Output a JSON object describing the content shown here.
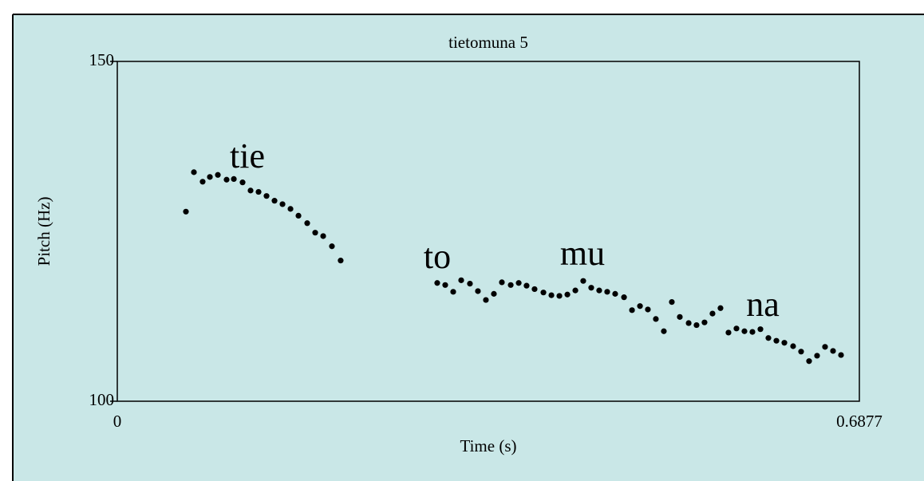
{
  "chart_data": {
    "type": "scatter",
    "title": "tietomuna 5",
    "xlabel": "Time (s)",
    "ylabel": "Pitch (Hz)",
    "color": "#000000",
    "xlim": [
      0,
      0.6877
    ],
    "ylim": [
      100,
      150
    ],
    "xticks": [
      0,
      0.6877
    ],
    "yticks": [
      100,
      150
    ],
    "grid": false,
    "annotations": [
      "tie",
      "to",
      "mu",
      "na"
    ],
    "x": [
      0.0636,
      0.071,
      0.0791,
      0.0858,
      0.0932,
      0.1013,
      0.108,
      0.1161,
      0.1235,
      0.1309,
      0.1383,
      0.1457,
      0.1531,
      0.1605,
      0.1679,
      0.176,
      0.1834,
      0.1908,
      0.1989,
      0.207,
      0.2965,
      0.3039,
      0.3113,
      0.3187,
      0.3268,
      0.3342,
      0.3416,
      0.349,
      0.3564,
      0.3646,
      0.372,
      0.3793,
      0.3867,
      0.3949,
      0.4023,
      0.4097,
      0.4171,
      0.4245,
      0.4318,
      0.4392,
      0.4466,
      0.454,
      0.4614,
      0.4696,
      0.477,
      0.4844,
      0.4917,
      0.4991,
      0.5065,
      0.5139,
      0.5213,
      0.5295,
      0.5368,
      0.5442,
      0.5516,
      0.559,
      0.5664,
      0.5738,
      0.5812,
      0.5886,
      0.596,
      0.6034,
      0.6108,
      0.6182,
      0.6263,
      0.6337,
      0.6411,
      0.6485,
      0.6559,
      0.6633,
      0.6707
    ],
    "values": [
      127.9,
      133.7,
      132.3,
      133.0,
      133.3,
      132.6,
      132.7,
      132.2,
      131.0,
      130.8,
      130.2,
      129.5,
      129.0,
      128.3,
      127.3,
      126.2,
      124.8,
      124.3,
      122.8,
      120.7,
      117.4,
      117.1,
      116.1,
      117.8,
      117.3,
      116.2,
      114.9,
      115.8,
      117.5,
      117.1,
      117.4,
      117.0,
      116.5,
      116.0,
      115.6,
      115.5,
      115.7,
      116.3,
      117.7,
      116.7,
      116.3,
      116.1,
      115.8,
      115.3,
      113.4,
      114.0,
      113.5,
      112.1,
      110.3,
      114.6,
      112.4,
      111.5,
      111.2,
      111.6,
      112.9,
      113.7,
      110.1,
      110.7,
      110.3,
      110.2,
      110.6,
      109.3,
      108.9,
      108.6,
      108.1,
      107.3,
      105.9,
      106.7,
      108.0,
      107.4,
      106.8
    ]
  }
}
